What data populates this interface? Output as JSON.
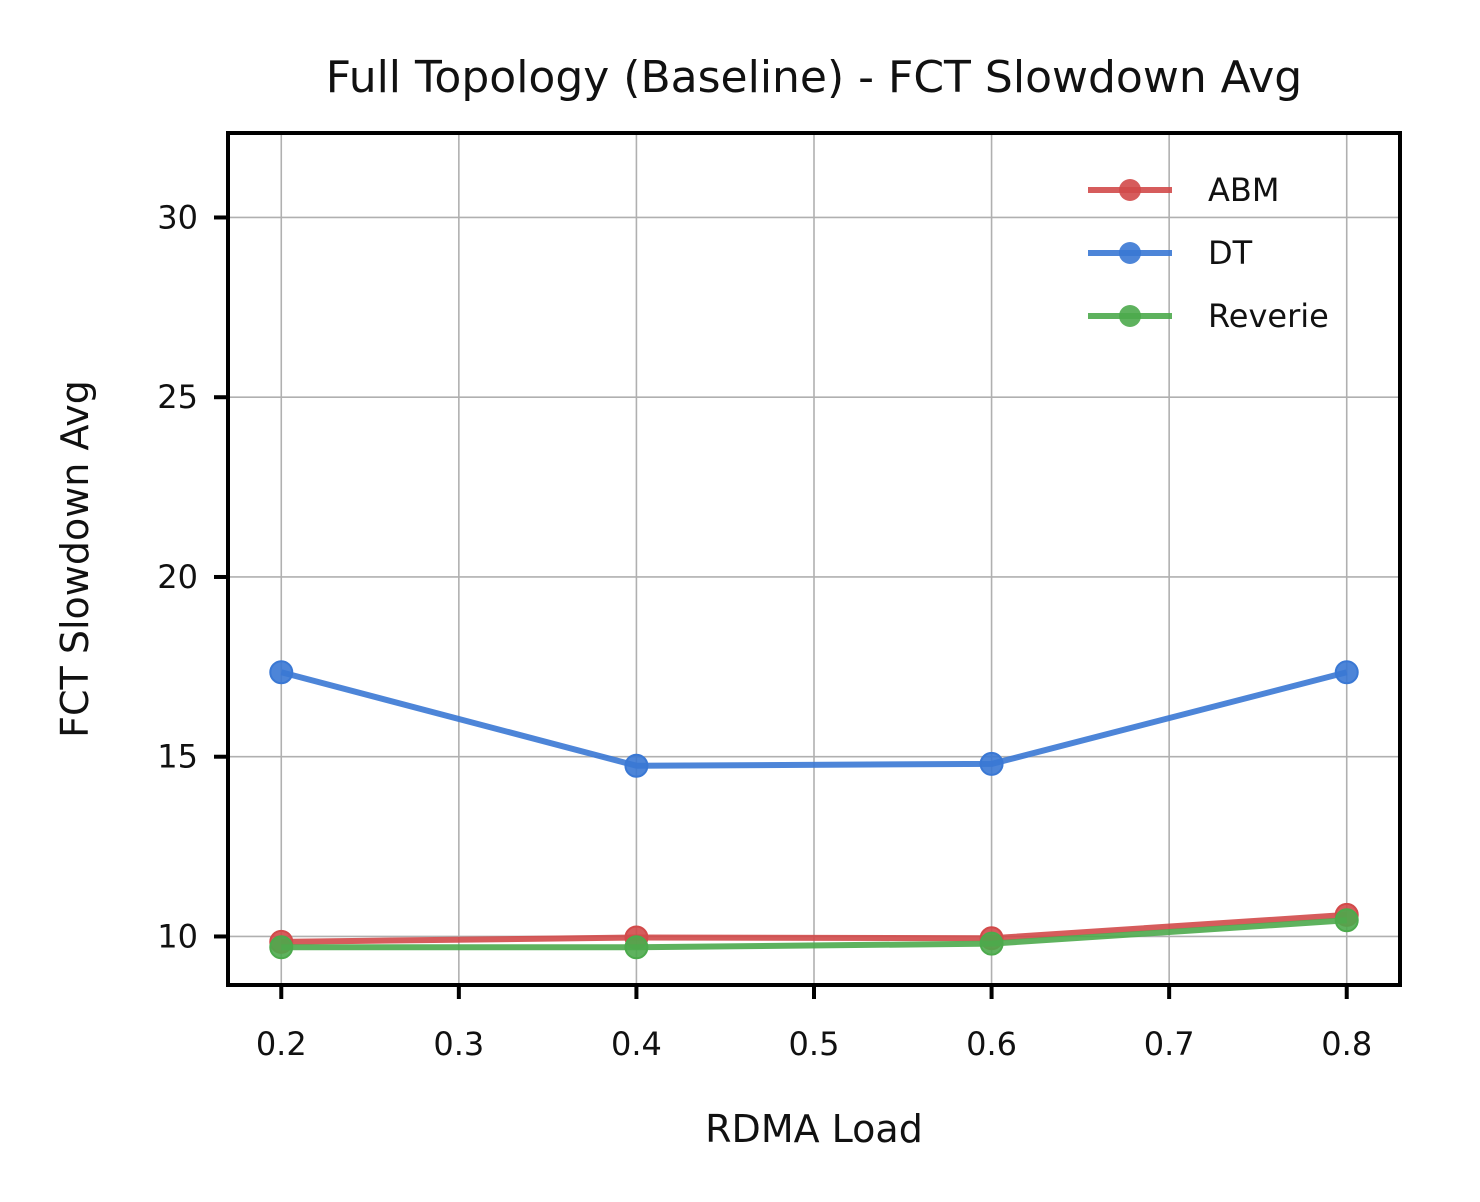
{
  "chart_data": {
    "type": "line",
    "title": "Full Topology (Baseline) - FCT Slowdown Avg",
    "xlabel": "RDMA Load",
    "ylabel": "FCT Slowdown Avg",
    "x": [
      0.2,
      0.4,
      0.6,
      0.8
    ],
    "xlim": [
      0.17,
      0.83
    ],
    "ylim": [
      8.65,
      32.35
    ],
    "xticks": [
      0.2,
      0.3,
      0.4,
      0.5,
      0.6,
      0.7,
      0.8
    ],
    "xtick_labels": [
      "0.2",
      "0.3",
      "0.4",
      "0.5",
      "0.6",
      "0.7",
      "0.8"
    ],
    "yticks": [
      10,
      15,
      20,
      25,
      30
    ],
    "ytick_labels": [
      "10",
      "15",
      "20",
      "25",
      "30"
    ],
    "grid": true,
    "legend_position": "top-right",
    "series": [
      {
        "name": "ABM",
        "color": "#d24a4a",
        "values": [
          9.85,
          9.97,
          9.95,
          10.6
        ]
      },
      {
        "name": "DT",
        "color": "#3a78d4",
        "values": [
          17.35,
          14.75,
          14.8,
          17.35
        ]
      },
      {
        "name": "Reverie",
        "color": "#4caa4c",
        "values": [
          9.7,
          9.7,
          9.8,
          10.45
        ]
      }
    ]
  }
}
